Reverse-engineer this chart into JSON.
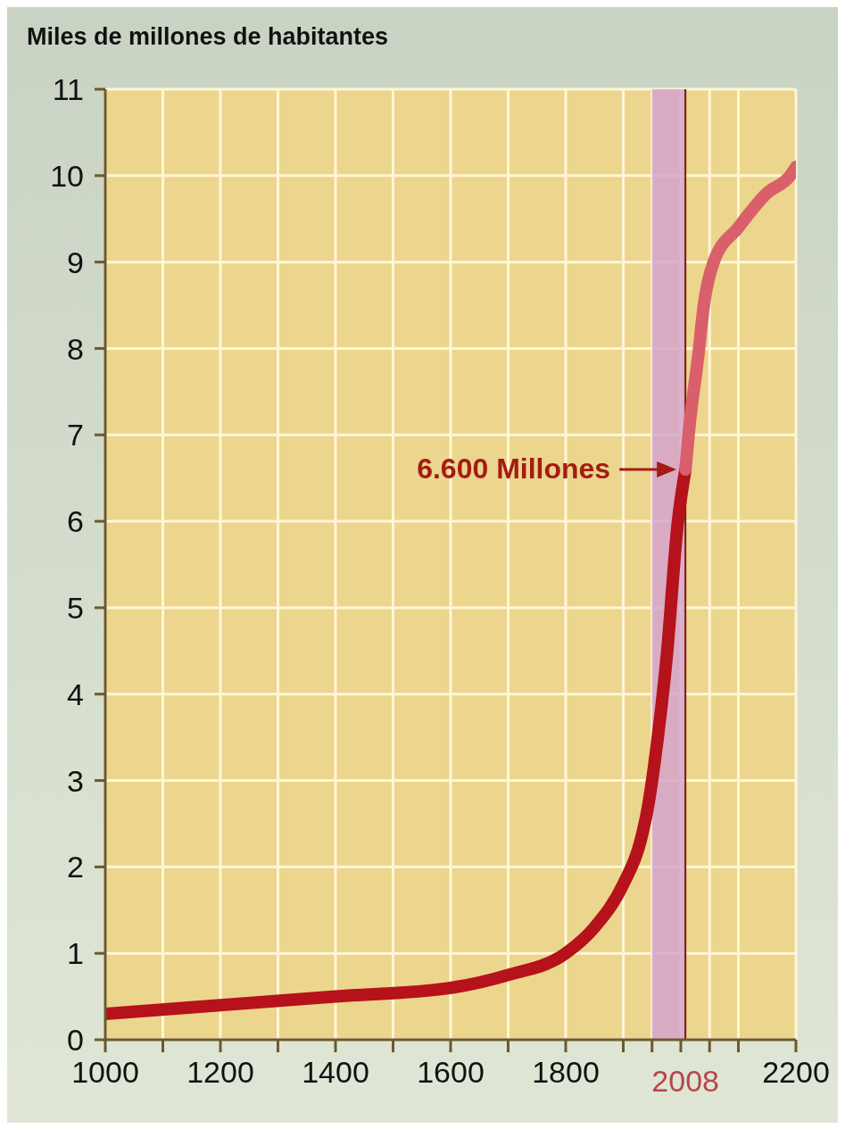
{
  "chart_data": {
    "type": "line",
    "ylabel": "Miles de millones de habitantes",
    "series": [
      {
        "color": "#b5121b",
        "x": [
          1000,
          1200,
          1400,
          1600,
          1700,
          1800,
          1850,
          1900,
          1930,
          1943,
          1960,
          1975,
          1995,
          2008
        ],
        "values": [
          0.3,
          0.4,
          0.5,
          0.6,
          0.75,
          1.0,
          1.3,
          1.8,
          2.3,
          2.7,
          3.5,
          4.4,
          6.0,
          6.6
        ]
      },
      {
        "color": "#d9606a",
        "x": [
          2008,
          2015,
          2030,
          2040,
          2057,
          2100,
          2150,
          2190,
          2200
        ],
        "values": [
          6.6,
          7.1,
          7.9,
          8.5,
          9.0,
          9.4,
          9.8,
          10.0,
          10.1
        ]
      }
    ],
    "xlim": [
      1000,
      2200
    ],
    "ylim": [
      0,
      11
    ],
    "xticks": [
      1000,
      {
        "value": 1100,
        "label": null
      },
      1200,
      {
        "value": 1300,
        "label": null
      },
      1400,
      {
        "value": 1500,
        "label": null
      },
      1600,
      {
        "value": 1700,
        "label": null
      },
      1800,
      {
        "value": 1900,
        "label": null
      },
      {
        "value": 1950,
        "label": null
      },
      {
        "value": 2000,
        "label": null
      },
      {
        "value": 2050,
        "label": null
      },
      {
        "value": 2100,
        "label": null
      },
      2200
    ],
    "yticks": [
      0,
      1,
      2,
      3,
      4,
      5,
      6,
      7,
      8,
      9,
      10,
      11
    ],
    "grid": true,
    "marker": "none",
    "line_style": "solid",
    "bands": [
      {
        "axis": "x",
        "from": 1950,
        "to": 2008,
        "color": "#d4a0d0"
      }
    ],
    "ref_lines": [
      {
        "axis": "x",
        "value": 2008,
        "label": "2008",
        "color": "#7a1a10"
      }
    ],
    "annotations": [
      {
        "text": "6.600 Millones",
        "x": 2008,
        "y": 6.6
      }
    ]
  }
}
